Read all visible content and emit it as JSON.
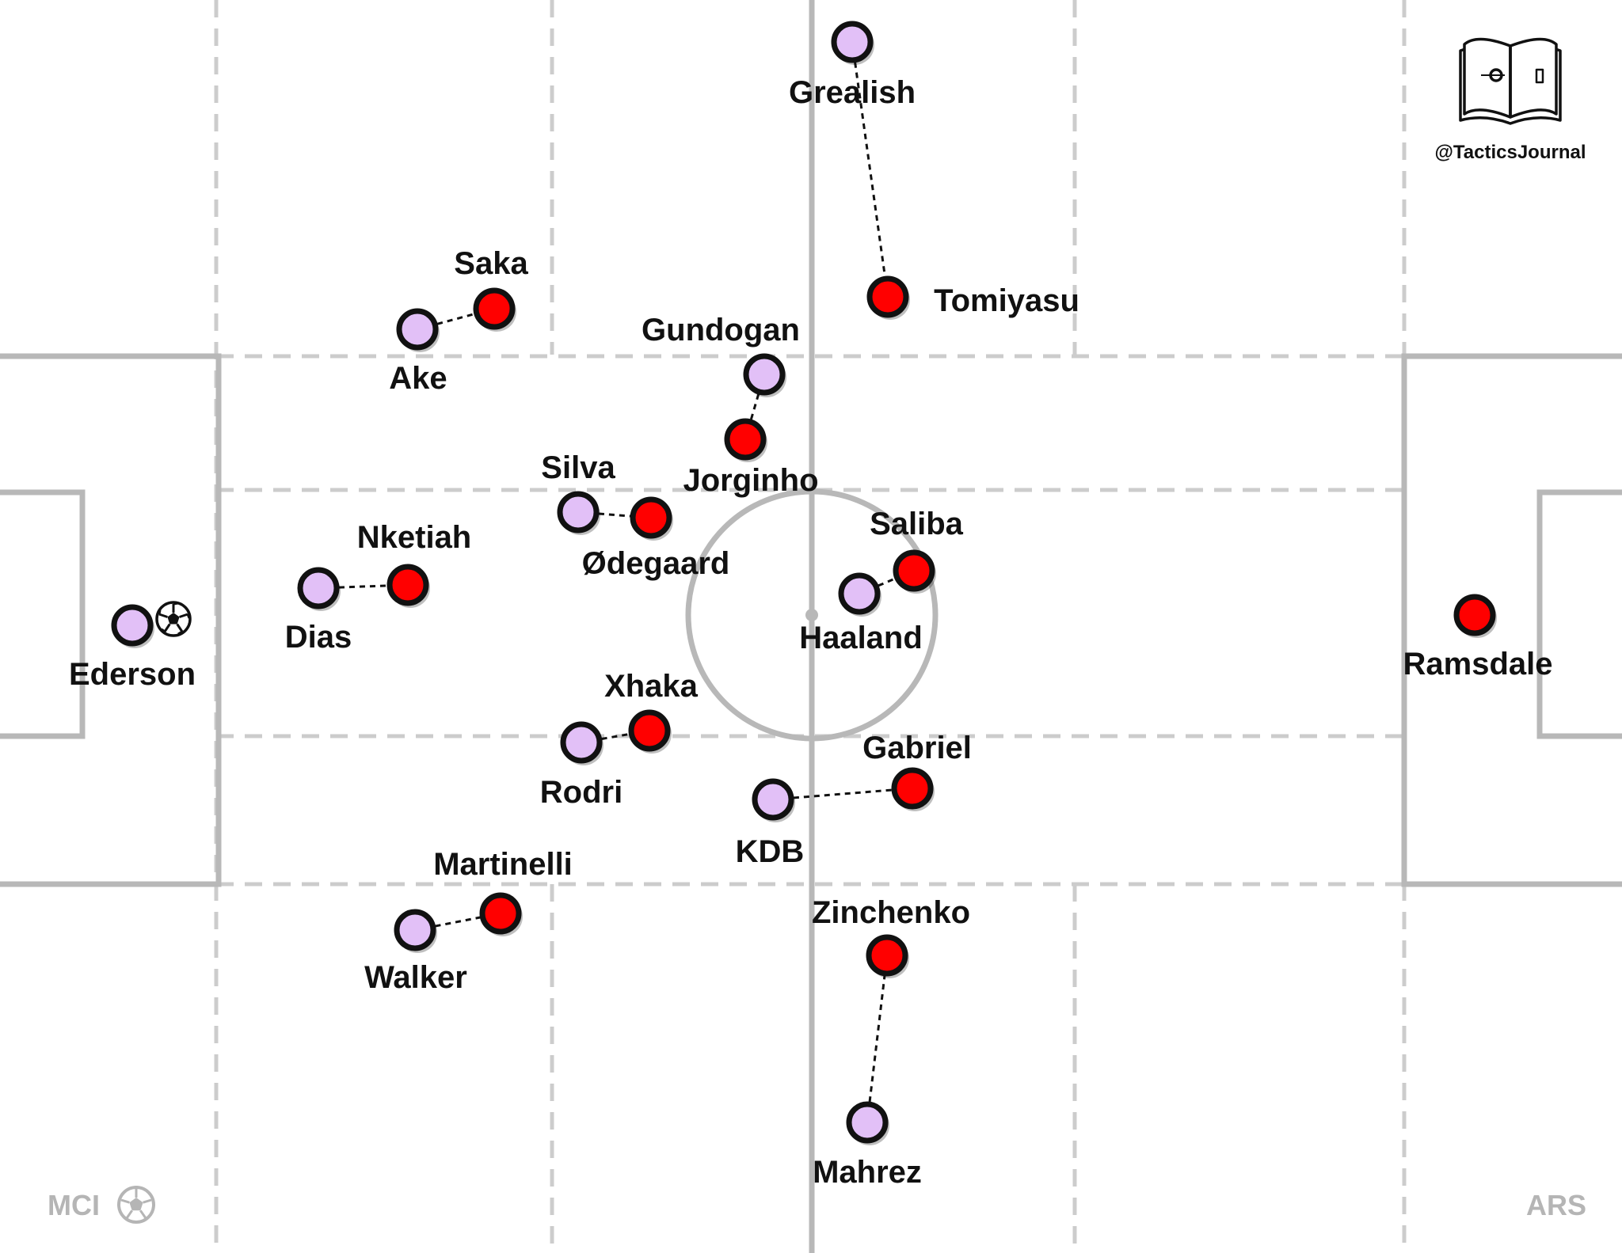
{
  "diagram": {
    "watermark": {
      "handle": "@TacticsJournal",
      "logo_icon": "open-book-icon"
    },
    "teams": {
      "left": {
        "label": "MCI",
        "color": "#e2c0f7",
        "icon": "football-icon"
      },
      "right": {
        "label": "ARS",
        "color": "#ff0000"
      }
    },
    "ball_icon": "football-icon",
    "players": [
      {
        "id": "ederson",
        "name": "Ederson",
        "team": "left",
        "has_ball": true
      },
      {
        "id": "dias",
        "name": "Dias",
        "team": "left"
      },
      {
        "id": "ake",
        "name": "Ake",
        "team": "left"
      },
      {
        "id": "walker",
        "name": "Walker",
        "team": "left"
      },
      {
        "id": "silva",
        "name": "Silva",
        "team": "left"
      },
      {
        "id": "rodri",
        "name": "Rodri",
        "team": "left"
      },
      {
        "id": "gundogan",
        "name": "Gundogan",
        "team": "left"
      },
      {
        "id": "kdb",
        "name": "KDB",
        "team": "left"
      },
      {
        "id": "grealish",
        "name": "Grealish",
        "team": "left"
      },
      {
        "id": "haaland",
        "name": "Haaland",
        "team": "left"
      },
      {
        "id": "mahrez",
        "name": "Mahrez",
        "team": "left"
      },
      {
        "id": "ramsdale",
        "name": "Ramsdale",
        "team": "right"
      },
      {
        "id": "saka",
        "name": "Saka",
        "team": "right"
      },
      {
        "id": "nketiah",
        "name": "Nketiah",
        "team": "right"
      },
      {
        "id": "martinelli",
        "name": "Martinelli",
        "team": "right"
      },
      {
        "id": "odegaard",
        "name": "Ødegaard",
        "team": "right"
      },
      {
        "id": "xhaka",
        "name": "Xhaka",
        "team": "right"
      },
      {
        "id": "jorginho",
        "name": "Jorginho",
        "team": "right"
      },
      {
        "id": "tomiyasu",
        "name": "Tomiyasu",
        "team": "right"
      },
      {
        "id": "saliba",
        "name": "Saliba",
        "team": "right"
      },
      {
        "id": "gabriel",
        "name": "Gabriel",
        "team": "right"
      },
      {
        "id": "zinchenko",
        "name": "Zinchenko",
        "team": "right"
      }
    ],
    "markings": [
      [
        "grealish",
        "tomiyasu"
      ],
      [
        "ake",
        "saka"
      ],
      [
        "gundogan",
        "jorginho"
      ],
      [
        "silva",
        "odegaard"
      ],
      [
        "dias",
        "nketiah"
      ],
      [
        "haaland",
        "saliba"
      ],
      [
        "rodri",
        "xhaka"
      ],
      [
        "kdb",
        "gabriel"
      ],
      [
        "walker",
        "martinelli"
      ],
      [
        "mahrez",
        "zinchenko"
      ]
    ]
  }
}
